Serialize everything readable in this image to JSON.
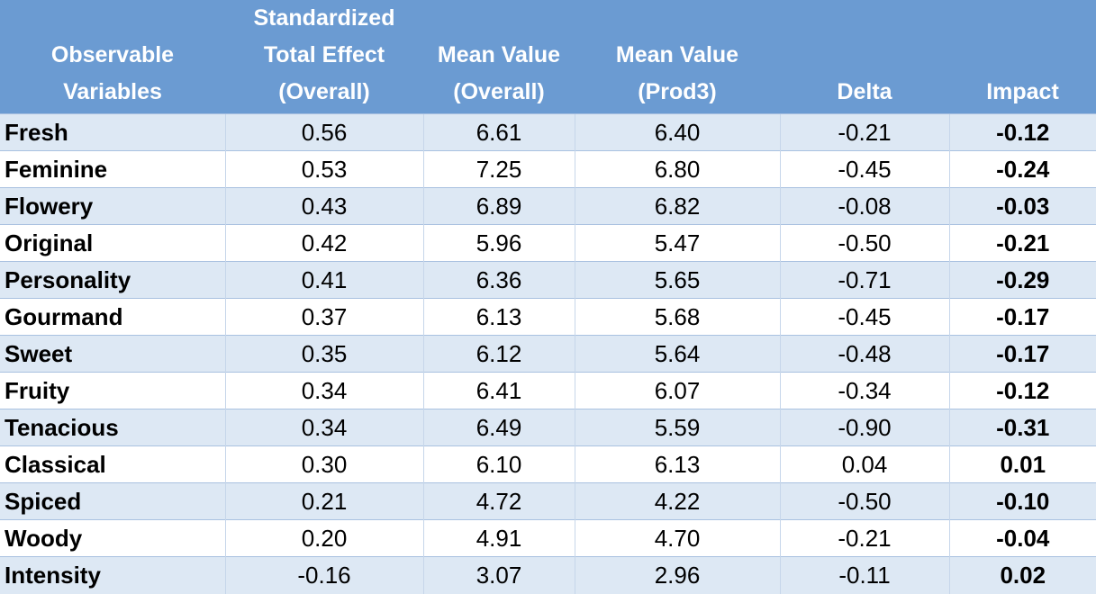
{
  "table": {
    "headers": [
      "Observable\nVariables",
      "Standardized\nTotal Effect\n(Overall)",
      "Mean Value\n(Overall)",
      "Mean Value\n(Prod3)",
      "Delta",
      "Impact"
    ],
    "rows": [
      [
        "Fresh",
        "0.56",
        "6.61",
        "6.40",
        "-0.21",
        "-0.12"
      ],
      [
        "Feminine",
        "0.53",
        "7.25",
        "6.80",
        "-0.45",
        "-0.24"
      ],
      [
        "Flowery",
        "0.43",
        "6.89",
        "6.82",
        "-0.08",
        "-0.03"
      ],
      [
        "Original",
        "0.42",
        "5.96",
        "5.47",
        "-0.50",
        "-0.21"
      ],
      [
        "Personality",
        "0.41",
        "6.36",
        "5.65",
        "-0.71",
        "-0.29"
      ],
      [
        "Gourmand",
        "0.37",
        "6.13",
        "5.68",
        "-0.45",
        "-0.17"
      ],
      [
        "Sweet",
        "0.35",
        "6.12",
        "5.64",
        "-0.48",
        "-0.17"
      ],
      [
        "Fruity",
        "0.34",
        "6.41",
        "6.07",
        "-0.34",
        "-0.12"
      ],
      [
        "Tenacious",
        "0.34",
        "6.49",
        "5.59",
        "-0.90",
        "-0.31"
      ],
      [
        "Classical",
        "0.30",
        "6.10",
        "6.13",
        "0.04",
        "0.01"
      ],
      [
        "Spiced",
        "0.21",
        "4.72",
        "4.22",
        "-0.50",
        "-0.10"
      ],
      [
        "Woody",
        "0.20",
        "4.91",
        "4.70",
        "-0.21",
        "-0.04"
      ],
      [
        "Intensity",
        "-0.16",
        "3.07",
        "2.96",
        "-0.11",
        "0.02"
      ]
    ]
  },
  "colors": {
    "header_background": "#6b9bd2",
    "header_text": "#ffffff",
    "band_row": "#dde8f4",
    "plain_row": "#ffffff",
    "row_border": "#a9c1e0"
  }
}
